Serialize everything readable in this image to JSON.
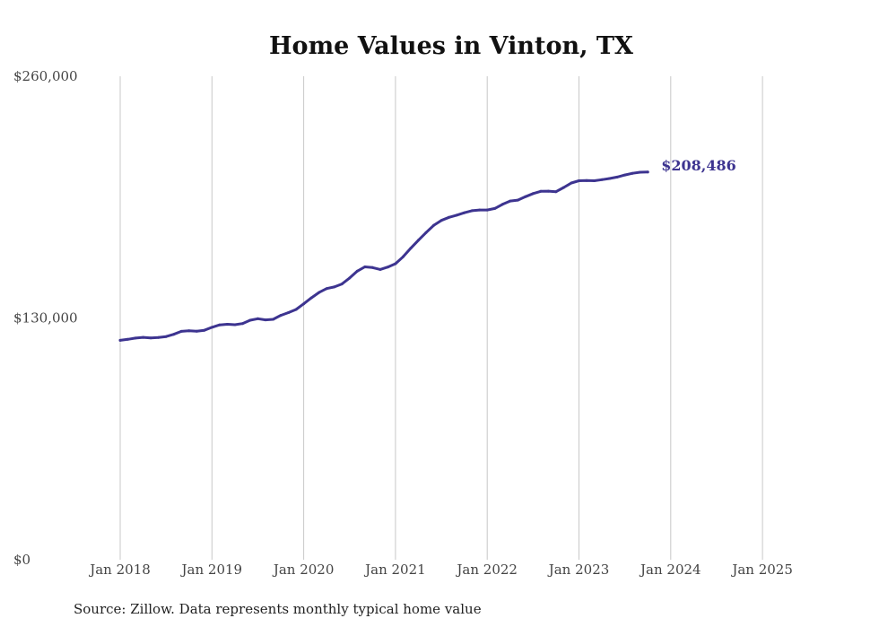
{
  "chart_data": {
    "type": "line",
    "title": "Home Values in Vinton, TX",
    "xlabel": "",
    "ylabel": "",
    "ylim": [
      0,
      260000
    ],
    "yticks": [
      {
        "value": 0,
        "label": "$0"
      },
      {
        "value": 130000,
        "label": "$130,000"
      },
      {
        "value": 260000,
        "label": "$260,000"
      }
    ],
    "xticks": [
      {
        "date": "2018-01",
        "label": "Jan 2018"
      },
      {
        "date": "2019-01",
        "label": "Jan 2019"
      },
      {
        "date": "2020-01",
        "label": "Jan 2020"
      },
      {
        "date": "2021-01",
        "label": "Jan 2021"
      },
      {
        "date": "2022-01",
        "label": "Jan 2022"
      },
      {
        "date": "2023-01",
        "label": "Jan 2023"
      },
      {
        "date": "2024-01",
        "label": "Jan 2024"
      },
      {
        "date": "2025-01",
        "label": "Jan 2025"
      }
    ],
    "grid": "vertical",
    "line_color": "#3d3490",
    "end_label": "$208,486",
    "series": [
      {
        "points": [
          [
            "2018-01",
            118000
          ],
          [
            "2018-02",
            118500
          ],
          [
            "2018-03",
            119200
          ],
          [
            "2018-04",
            119600
          ],
          [
            "2018-05",
            119300
          ],
          [
            "2018-06",
            119500
          ],
          [
            "2018-07",
            120000
          ],
          [
            "2018-08",
            121200
          ],
          [
            "2018-09",
            122800
          ],
          [
            "2018-10",
            123100
          ],
          [
            "2018-11",
            122900
          ],
          [
            "2018-12",
            123400
          ],
          [
            "2019-01",
            125000
          ],
          [
            "2019-02",
            126300
          ],
          [
            "2019-03",
            126600
          ],
          [
            "2019-04",
            126400
          ],
          [
            "2019-05",
            127000
          ],
          [
            "2019-06",
            128800
          ],
          [
            "2019-07",
            129600
          ],
          [
            "2019-08",
            129000
          ],
          [
            "2019-09",
            129300
          ],
          [
            "2019-10",
            131400
          ],
          [
            "2019-11",
            132900
          ],
          [
            "2019-12",
            134600
          ],
          [
            "2020-01",
            137600
          ],
          [
            "2020-02",
            140800
          ],
          [
            "2020-03",
            143700
          ],
          [
            "2020-04",
            145800
          ],
          [
            "2020-05",
            146700
          ],
          [
            "2020-06",
            148300
          ],
          [
            "2020-07",
            151500
          ],
          [
            "2020-08",
            155200
          ],
          [
            "2020-09",
            157500
          ],
          [
            "2020-10",
            157100
          ],
          [
            "2020-11",
            156100
          ],
          [
            "2020-12",
            157400
          ],
          [
            "2021-01",
            159200
          ],
          [
            "2021-02",
            162900
          ],
          [
            "2021-03",
            167500
          ],
          [
            "2021-04",
            171800
          ],
          [
            "2021-05",
            175900
          ],
          [
            "2021-06",
            179800
          ],
          [
            "2021-07",
            182500
          ],
          [
            "2021-08",
            184100
          ],
          [
            "2021-09",
            185300
          ],
          [
            "2021-10",
            186600
          ],
          [
            "2021-11",
            187700
          ],
          [
            "2021-12",
            188100
          ],
          [
            "2022-01",
            188100
          ],
          [
            "2022-02",
            188900
          ],
          [
            "2022-03",
            191100
          ],
          [
            "2022-04",
            192900
          ],
          [
            "2022-05",
            193400
          ],
          [
            "2022-06",
            195200
          ],
          [
            "2022-07",
            196900
          ],
          [
            "2022-08",
            198100
          ],
          [
            "2022-09",
            198200
          ],
          [
            "2022-10",
            197900
          ],
          [
            "2022-11",
            200200
          ],
          [
            "2022-12",
            202600
          ],
          [
            "2023-01",
            203800
          ],
          [
            "2023-02",
            203900
          ],
          [
            "2023-03",
            203800
          ],
          [
            "2023-04",
            204400
          ],
          [
            "2023-05",
            205000
          ],
          [
            "2023-06",
            205800
          ],
          [
            "2023-07",
            206900
          ],
          [
            "2023-08",
            207800
          ],
          [
            "2023-09",
            208400
          ],
          [
            "2023-10",
            208486
          ]
        ]
      }
    ]
  },
  "footer": {
    "source": "Source: Zillow. Data represents monthly typical home value"
  }
}
